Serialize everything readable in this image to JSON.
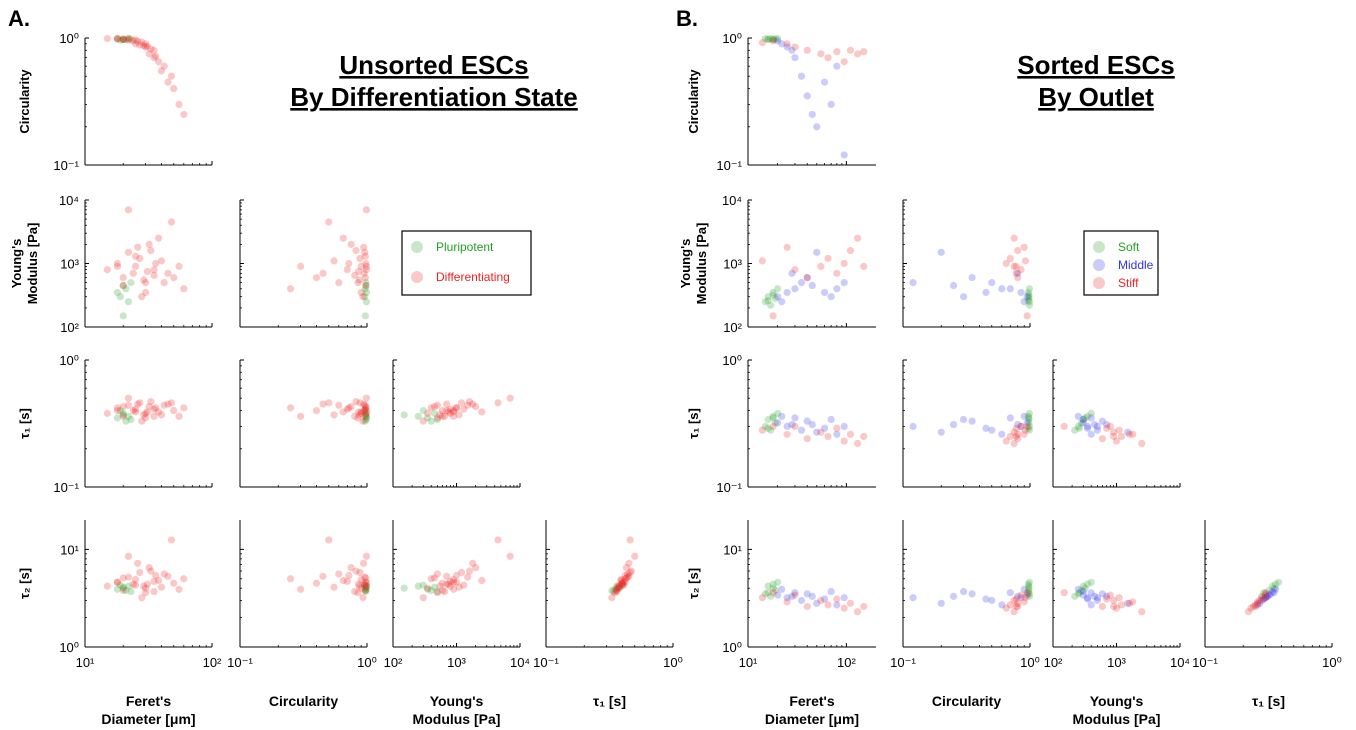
{
  "panels": {
    "A": {
      "letter": "A.",
      "title": [
        "Unsorted ESCs",
        "By Differentiation State"
      ],
      "legend": [
        {
          "label": "Pluripotent",
          "color": "#22a022"
        },
        {
          "label": "Differentiating",
          "color": "#ee2222"
        }
      ]
    },
    "B": {
      "letter": "B.",
      "title": [
        "Sorted ESCs",
        "By Outlet"
      ],
      "legend": [
        {
          "label": "Soft",
          "color": "#22a022"
        },
        {
          "label": "Middle",
          "color": "#3333ee"
        },
        {
          "label": "Stiff",
          "color": "#ee2222"
        }
      ]
    }
  },
  "axis_labels": {
    "circularity": [
      "Circularity"
    ],
    "youngs": [
      "Young's",
      "Modulus [Pa]"
    ],
    "tau1": [
      "τ₁ [s]"
    ],
    "tau2": [
      "τ₂ [s]"
    ],
    "x_feret": [
      "Feret's",
      "Diameter [μm]"
    ],
    "x_circularity": [
      "Circularity"
    ],
    "x_youngs": [
      "Young's",
      "Modulus [Pa]"
    ],
    "x_tau1": [
      "τ₁ [s]"
    ]
  },
  "chart_data": [
    {
      "type": "scatter",
      "title": "Unsorted ESCs By Differentiation State",
      "subplots": "lower-triangle scatter matrix",
      "scales": "log-log",
      "variables": [
        "Feret's Diameter [μm]",
        "Circularity",
        "Young's Modulus [Pa]",
        "τ₁ [s]",
        "τ₂ [s]"
      ],
      "axis_ranges": {
        "Feret's Diameter [μm]": [
          10,
          100
        ],
        "Circularity": [
          0.1,
          1
        ],
        "Young's Modulus [Pa]": [
          100,
          10000
        ],
        "τ₁ [s]": [
          0.1,
          1
        ],
        "τ₂ [s]": [
          1,
          20
        ]
      },
      "series": [
        {
          "name": "Pluripotent",
          "feret": [
            18,
            20,
            21,
            22,
            19,
            23,
            20
          ],
          "circularity": [
            0.99,
            0.98,
            0.97,
            0.99,
            0.96,
            0.98,
            0.97
          ],
          "youngs": [
            350,
            450,
            400,
            250,
            300,
            500,
            150
          ],
          "tau1": [
            0.35,
            0.38,
            0.33,
            0.36,
            0.4,
            0.34,
            0.37
          ],
          "tau2": [
            3.9,
            4.1,
            3.8,
            4.2,
            4.3,
            3.7,
            4.0
          ]
        },
        {
          "name": "Differentiating",
          "feret": [
            15,
            18,
            20,
            22,
            24,
            25,
            27,
            30,
            32,
            35,
            40,
            45,
            50,
            55,
            60,
            22,
            28,
            33,
            38,
            42,
            25,
            30,
            35,
            20,
            18,
            26,
            29,
            31,
            36,
            48
          ],
          "circularity": [
            0.99,
            0.98,
            0.97,
            0.96,
            0.95,
            0.9,
            0.88,
            0.85,
            0.75,
            0.7,
            0.55,
            0.45,
            0.4,
            0.3,
            0.25,
            0.99,
            0.93,
            0.82,
            0.65,
            0.6,
            0.97,
            0.9,
            0.8,
            0.98,
            0.99,
            0.94,
            0.87,
            0.86,
            0.72,
            0.5
          ],
          "youngs": [
            800,
            1000,
            600,
            1500,
            700,
            900,
            1200,
            500,
            2000,
            800,
            1100,
            700,
            600,
            900,
            400,
            7000,
            300,
            1600,
            2500,
            500,
            1300,
            350,
            650,
            450,
            900,
            1800,
            550,
            750,
            1000,
            4500
          ],
          "tau1": [
            0.38,
            0.42,
            0.36,
            0.44,
            0.4,
            0.39,
            0.46,
            0.35,
            0.43,
            0.41,
            0.37,
            0.45,
            0.4,
            0.36,
            0.42,
            0.5,
            0.33,
            0.47,
            0.39,
            0.44,
            0.41,
            0.38,
            0.36,
            0.43,
            0.4,
            0.45,
            0.37,
            0.39,
            0.42,
            0.46
          ],
          "tau2": [
            4.2,
            4.6,
            3.8,
            5.2,
            4.4,
            4.9,
            5.8,
            3.6,
            6.5,
            4.7,
            4.1,
            5.3,
            4.5,
            3.9,
            5.0,
            8.5,
            3.2,
            6.0,
            4.8,
            5.6,
            4.3,
            4.0,
            3.7,
            5.1,
            4.6,
            7.2,
            4.2,
            4.4,
            5.4,
            12.5
          ]
        }
      ]
    },
    {
      "type": "scatter",
      "title": "Sorted ESCs By Outlet",
      "subplots": "lower-triangle scatter matrix",
      "scales": "log-log",
      "variables": [
        "Feret's Diameter [μm]",
        "Circularity",
        "Young's Modulus [Pa]",
        "τ₁ [s]",
        "τ₂ [s]"
      ],
      "axis_ranges": {
        "Feret's Diameter [μm]": [
          10,
          200
        ],
        "Circularity": [
          0.1,
          1
        ],
        "Young's Modulus [Pa]": [
          100,
          10000
        ],
        "τ₁ [s]": [
          0.1,
          1
        ],
        "τ₂ [s]": [
          1,
          20
        ]
      },
      "series": [
        {
          "name": "Soft",
          "feret": [
            15,
            16,
            17,
            18,
            19,
            20,
            16,
            18
          ],
          "circularity": [
            0.99,
            0.98,
            0.99,
            0.97,
            0.98,
            0.99,
            0.97,
            0.98
          ],
          "youngs": [
            250,
            300,
            220,
            350,
            280,
            400,
            260,
            320
          ],
          "tau1": [
            0.3,
            0.34,
            0.28,
            0.36,
            0.32,
            0.38,
            0.29,
            0.35
          ],
          "tau2": [
            3.5,
            4.2,
            3.3,
            4.4,
            3.8,
            4.6,
            3.6,
            4.0
          ]
        },
        {
          "name": "Middle",
          "feret": [
            20,
            25,
            30,
            35,
            40,
            45,
            50,
            60,
            70,
            80,
            95,
            22,
            28
          ],
          "circularity": [
            0.95,
            0.85,
            0.7,
            0.5,
            0.35,
            0.25,
            0.2,
            0.45,
            0.3,
            0.6,
            0.12,
            0.9,
            0.8
          ],
          "youngs": [
            300,
            350,
            400,
            500,
            600,
            450,
            1500,
            350,
            300,
            400,
            500,
            250,
            700
          ],
          "tau1": [
            0.32,
            0.3,
            0.35,
            0.28,
            0.33,
            0.31,
            0.27,
            0.29,
            0.34,
            0.26,
            0.3,
            0.36,
            0.31
          ],
          "tau2": [
            3.4,
            3.2,
            3.6,
            3.0,
            3.5,
            3.3,
            2.8,
            3.1,
            3.7,
            2.7,
            3.2,
            3.9,
            3.3
          ]
        },
        {
          "name": "Stiff",
          "feret": [
            14,
            25,
            30,
            40,
            55,
            65,
            80,
            95,
            110,
            130,
            150,
            18
          ],
          "circularity": [
            0.92,
            0.9,
            0.85,
            0.8,
            0.75,
            0.7,
            0.78,
            0.65,
            0.8,
            0.75,
            0.78,
            0.95
          ],
          "youngs": [
            1100,
            1800,
            800,
            600,
            900,
            1200,
            700,
            1000,
            1600,
            2500,
            900,
            150
          ],
          "tau1": [
            0.28,
            0.26,
            0.3,
            0.24,
            0.27,
            0.25,
            0.29,
            0.23,
            0.26,
            0.22,
            0.25,
            0.3
          ],
          "tau2": [
            3.2,
            2.9,
            3.4,
            2.6,
            3.0,
            2.7,
            3.1,
            2.5,
            2.8,
            2.3,
            2.6,
            3.6
          ]
        }
      ]
    }
  ]
}
